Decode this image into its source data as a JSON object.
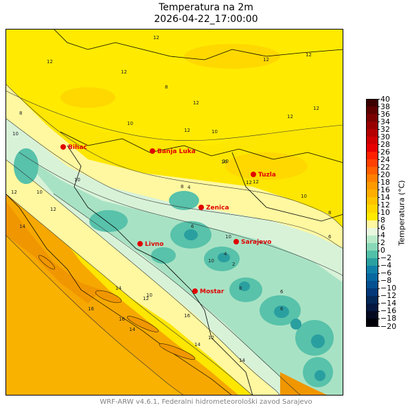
{
  "title": {
    "line1": "Temperatura na 2m",
    "line2": "2026-04-22_17:00:00"
  },
  "colorbar": {
    "label": "Temperatura (°C)",
    "ticks": [
      "40",
      "38",
      "36",
      "34",
      "32",
      "30",
      "28",
      "26",
      "24",
      "22",
      "20",
      "18",
      "16",
      "14",
      "12",
      "10",
      "8",
      "6",
      "4",
      "2",
      "0",
      "−2",
      "−4",
      "−6",
      "−8",
      "−10",
      "−12",
      "−14",
      "−16",
      "−18",
      "−20"
    ],
    "colors": [
      "#3a0000",
      "#5c0000",
      "#7a0000",
      "#980000",
      "#b40000",
      "#d00000",
      "#e60000",
      "#ff2000",
      "#ff4000",
      "#ff6000",
      "#ff8000",
      "#ff9900",
      "#ffae00",
      "#ffc400",
      "#ffd800",
      "#ffea00",
      "#fff8a0",
      "#e8f8e0",
      "#b8eac8",
      "#88d8b8",
      "#50c0a8",
      "#2aa0a0",
      "#1080a8",
      "#0868a0",
      "#045090",
      "#043878",
      "#052858",
      "#061840",
      "#050a20",
      "#000008"
    ]
  },
  "cities": [
    {
      "name": "Bihać"
    },
    {
      "name": "Banja Luka"
    },
    {
      "name": "Tuzla"
    },
    {
      "name": "Zenica"
    },
    {
      "name": "Livno"
    },
    {
      "name": "Sarajevo"
    },
    {
      "name": "Mostar"
    }
  ],
  "contour_labels": [
    "12",
    "12",
    "12",
    "12",
    "10",
    "8",
    "12",
    "10",
    "12",
    "10",
    "12",
    "8",
    "10",
    "10",
    "12",
    "12",
    "12",
    "12",
    "8",
    "6",
    "10",
    "4",
    "10",
    "10",
    "10",
    "6",
    "8",
    "12",
    "12",
    "10",
    "4",
    "2",
    "8",
    "6",
    "14",
    "16",
    "10",
    "16",
    "14",
    "16",
    "14",
    "12",
    "14",
    "12",
    "14",
    "6"
  ],
  "footer": "WRF-ARW v4.6.1, Federalni hidrometeorološki zavod Sarajevo"
}
